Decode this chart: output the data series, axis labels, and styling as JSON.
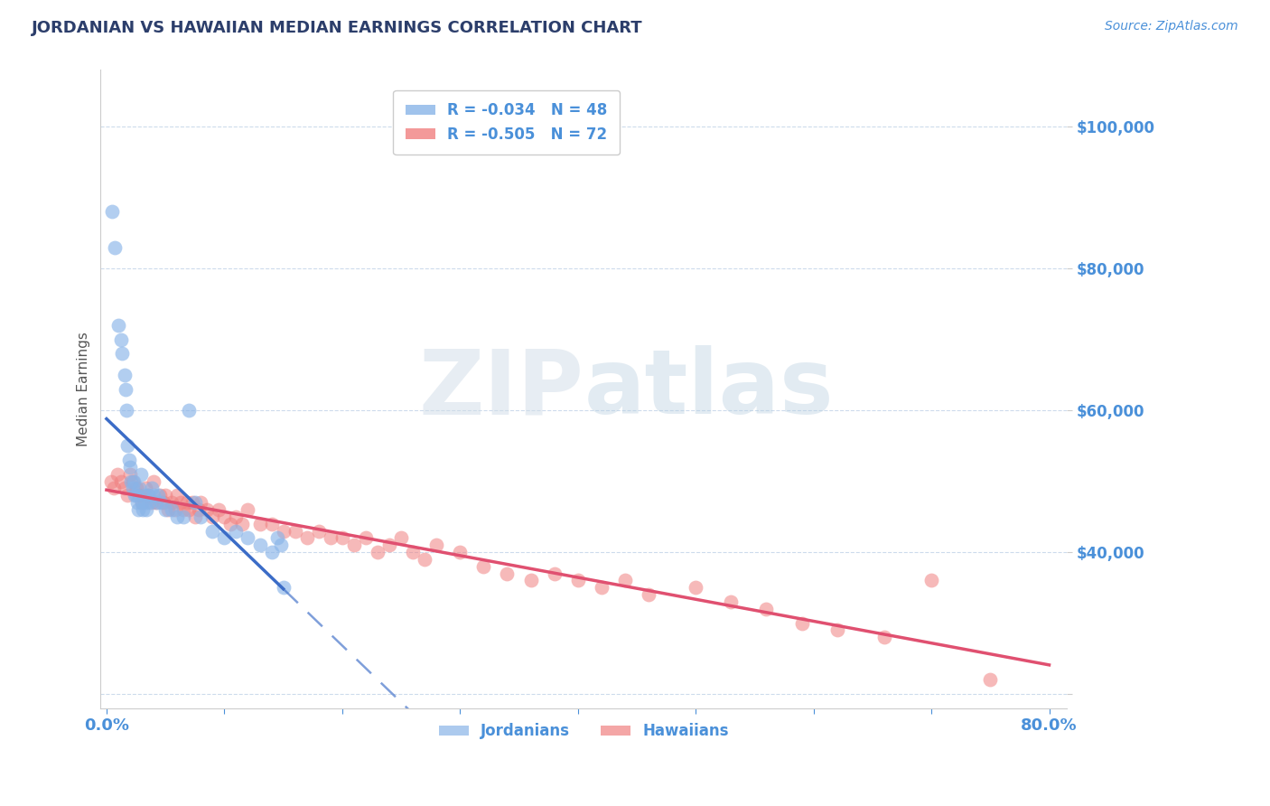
{
  "title": "JORDANIAN VS HAWAIIAN MEDIAN EARNINGS CORRELATION CHART",
  "source_text": "Source: ZipAtlas.com",
  "ylabel": "Median Earnings",
  "xlim": [
    -0.005,
    0.815
  ],
  "ylim": [
    18000,
    108000
  ],
  "yticks": [
    20000,
    40000,
    60000,
    80000,
    100000
  ],
  "ytick_labels": [
    "",
    "$40,000",
    "$60,000",
    "$80,000",
    "$100,000"
  ],
  "title_color": "#2c3e6b",
  "title_fontsize": 13,
  "axis_label_color": "#555555",
  "tick_label_color": "#4a90d9",
  "grid_color": "#c8d8ea",
  "background_color": "#ffffff",
  "jordanians_color": "#89b4e8",
  "hawaiians_color": "#f08080",
  "jordanians_line_color": "#3b6cc7",
  "hawaiians_line_color": "#e05070",
  "R_jordanians": -0.034,
  "N_jordanians": 48,
  "R_hawaiians": -0.505,
  "N_hawaiians": 72,
  "watermark_zip": "ZIP",
  "watermark_atlas": "atlas",
  "jordanians_x": [
    0.005,
    0.007,
    0.01,
    0.012,
    0.013,
    0.015,
    0.016,
    0.017,
    0.018,
    0.019,
    0.02,
    0.021,
    0.022,
    0.023,
    0.024,
    0.025,
    0.026,
    0.027,
    0.028,
    0.029,
    0.03,
    0.031,
    0.032,
    0.033,
    0.034,
    0.035,
    0.036,
    0.038,
    0.04,
    0.042,
    0.044,
    0.046,
    0.05,
    0.055,
    0.06,
    0.065,
    0.07,
    0.075,
    0.08,
    0.09,
    0.1,
    0.11,
    0.12,
    0.13,
    0.14,
    0.145,
    0.148,
    0.15
  ],
  "jordanians_y": [
    88000,
    83000,
    72000,
    70000,
    68000,
    65000,
    63000,
    60000,
    55000,
    53000,
    52000,
    50000,
    49000,
    50000,
    48000,
    48000,
    47000,
    46000,
    49000,
    51000,
    47000,
    46000,
    48000,
    47000,
    46000,
    48000,
    47000,
    49000,
    48000,
    47000,
    48000,
    47000,
    46000,
    46000,
    45000,
    45000,
    60000,
    47000,
    45000,
    43000,
    42000,
    43000,
    42000,
    41000,
    40000,
    42000,
    41000,
    35000
  ],
  "hawaiians_x": [
    0.004,
    0.006,
    0.009,
    0.012,
    0.015,
    0.018,
    0.02,
    0.022,
    0.025,
    0.028,
    0.03,
    0.033,
    0.035,
    0.038,
    0.04,
    0.042,
    0.045,
    0.048,
    0.05,
    0.052,
    0.055,
    0.058,
    0.06,
    0.063,
    0.065,
    0.068,
    0.07,
    0.073,
    0.075,
    0.078,
    0.08,
    0.085,
    0.09,
    0.095,
    0.1,
    0.105,
    0.11,
    0.115,
    0.12,
    0.13,
    0.14,
    0.15,
    0.16,
    0.17,
    0.18,
    0.19,
    0.2,
    0.21,
    0.22,
    0.23,
    0.24,
    0.25,
    0.26,
    0.27,
    0.28,
    0.3,
    0.32,
    0.34,
    0.36,
    0.38,
    0.4,
    0.42,
    0.44,
    0.46,
    0.5,
    0.53,
    0.56,
    0.59,
    0.62,
    0.66,
    0.7,
    0.75
  ],
  "hawaiians_y": [
    50000,
    49000,
    51000,
    50000,
    49000,
    48000,
    51000,
    50000,
    49000,
    48000,
    47000,
    49000,
    48000,
    47000,
    50000,
    47000,
    48000,
    47000,
    48000,
    46000,
    47000,
    46000,
    48000,
    47000,
    46000,
    47000,
    46000,
    47000,
    45000,
    46000,
    47000,
    46000,
    45000,
    46000,
    45000,
    44000,
    45000,
    44000,
    46000,
    44000,
    44000,
    43000,
    43000,
    42000,
    43000,
    42000,
    42000,
    41000,
    42000,
    40000,
    41000,
    42000,
    40000,
    39000,
    41000,
    40000,
    38000,
    37000,
    36000,
    37000,
    36000,
    35000,
    36000,
    34000,
    35000,
    33000,
    32000,
    30000,
    29000,
    28000,
    36000,
    22000
  ]
}
